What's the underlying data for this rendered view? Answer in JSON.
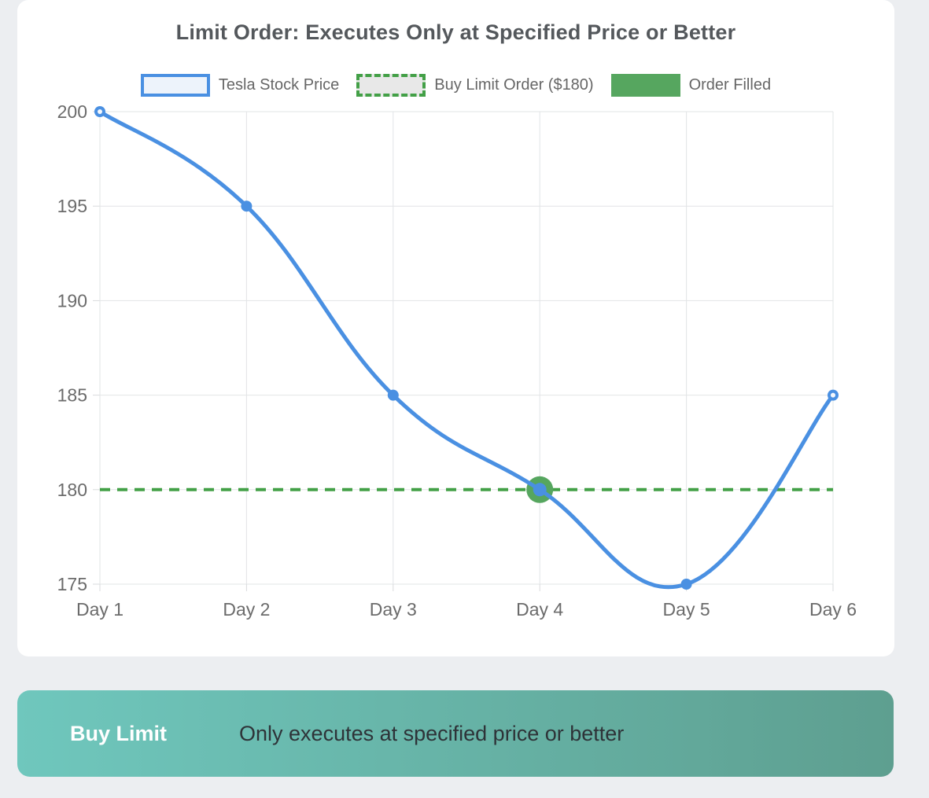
{
  "title": "Limit Order: Executes Only at Specified Price or Better",
  "legend": {
    "items": [
      {
        "label": "Tesla Stock Price",
        "key": "price"
      },
      {
        "label": "Buy Limit Order ($180)",
        "key": "limit"
      },
      {
        "label": "Order Filled",
        "key": "filled"
      }
    ]
  },
  "chart_data": {
    "type": "line",
    "title": "Limit Order: Executes Only at Specified Price or Better",
    "categories": [
      "Day 1",
      "Day 2",
      "Day 3",
      "Day 4",
      "Day 5",
      "Day 6"
    ],
    "series": [
      {
        "name": "Tesla Stock Price",
        "values": [
          200,
          195,
          185,
          180,
          175,
          185
        ]
      }
    ],
    "limit_line": {
      "name": "Buy Limit Order ($180)",
      "value": 180,
      "style": "dashed"
    },
    "order_filled": {
      "name": "Order Filled",
      "category": "Day 4",
      "value": 180
    },
    "y_ticks": [
      175,
      180,
      185,
      190,
      195,
      200
    ],
    "ylim": [
      175,
      200
    ],
    "xlabel": "",
    "ylabel": "",
    "grid": true,
    "legend_position": "top",
    "line_smoothing": true
  },
  "banner": {
    "tag": "Buy Limit",
    "description": "Only executes at specified price or better"
  },
  "colors": {
    "blue_line": "#4A90E2",
    "price_swatch_fill": "#EDF3FB",
    "limit_green": "#43A047",
    "limit_swatch_fill": "#E8E8E8",
    "filled_green": "#56A65F",
    "grid": "#E2E4E6",
    "axis_tick": "#D9DBDD",
    "banner_gradient_left": "#6FC7BD",
    "banner_gradient_right": "#5E9F90"
  }
}
